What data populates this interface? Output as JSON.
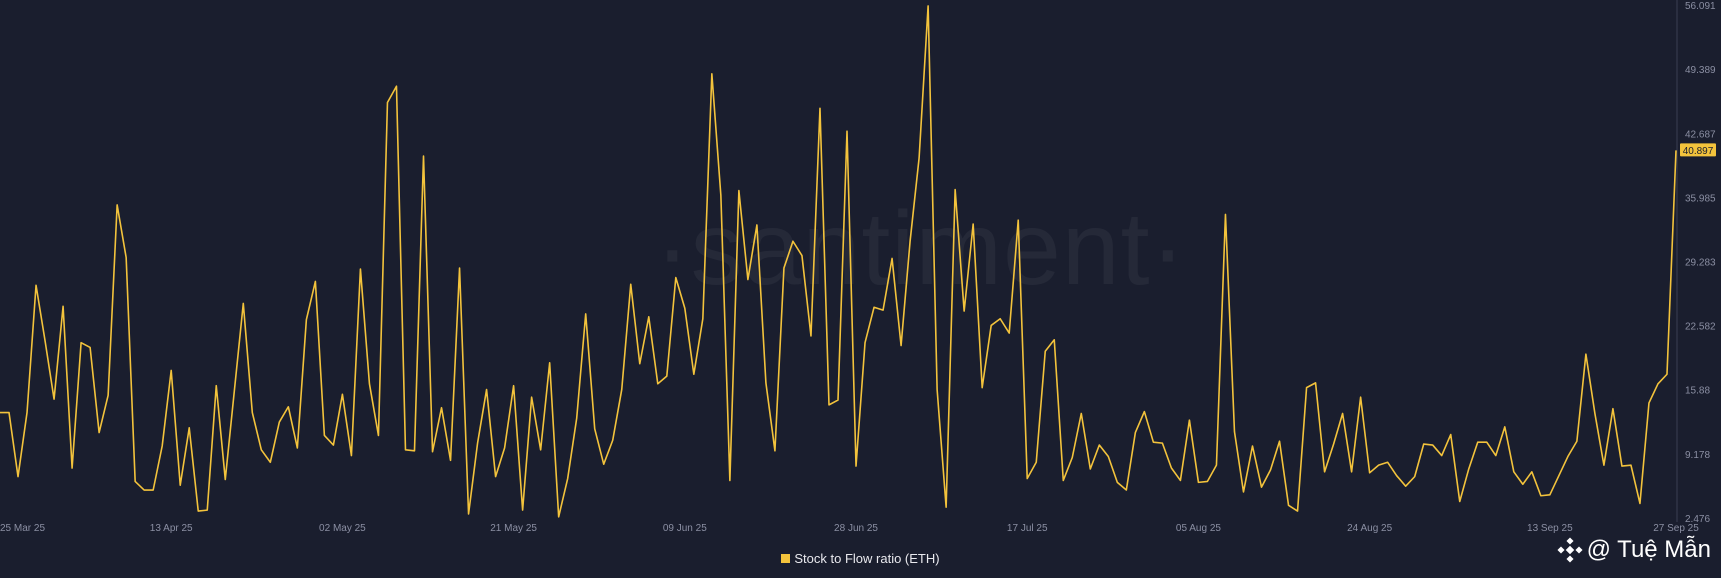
{
  "watermark": "·santiment·",
  "legend": {
    "label": "Stock to Flow ratio (ETH)"
  },
  "attribution": {
    "text": "@ Tuệ Mẫn",
    "icon": "binance-diamond-icon"
  },
  "colors": {
    "background": "#1a1e2e",
    "line": "#f3c33c",
    "tick_text": "#8b8fa3",
    "badge_text": "#1a1e2e"
  },
  "chart_data": {
    "type": "line",
    "title": "",
    "xlabel": "",
    "ylabel": "",
    "ylim": [
      2.476,
      56.091
    ],
    "y_ticks": [
      "56.091",
      "49.389",
      "42.687",
      "35.985",
      "29.283",
      "22.582",
      "15.88",
      "9.178",
      "2.476"
    ],
    "x_ticks": [
      "25 Mar 25",
      "13 Apr 25",
      "02 May 25",
      "21 May 25",
      "09 Jun 25",
      "28 Jun 25",
      "17 Jul 25",
      "05 Aug 25",
      "24 Aug 25",
      "13 Sep 25",
      "27 Sep 25"
    ],
    "x_range": [
      "2025-03-25",
      "2025-09-27"
    ],
    "last_value_label": "40.897",
    "series": [
      {
        "name": "Stock to Flow ratio (ETH)",
        "values": [
          13.5,
          13.5,
          6.8,
          13.5,
          26.8,
          21.0,
          14.9,
          24.6,
          7.7,
          20.8,
          20.3,
          11.4,
          15.3,
          35.2,
          29.7,
          6.3,
          5.4,
          5.4,
          10.0,
          17.9,
          5.9,
          11.9,
          3.2,
          3.3,
          16.3,
          6.5,
          15.7,
          24.9,
          13.5,
          9.6,
          8.3,
          12.5,
          14.1,
          9.8,
          23.2,
          27.2,
          11.1,
          10.1,
          15.4,
          9.0,
          28.5,
          16.5,
          11.1,
          45.9,
          47.6,
          9.6,
          9.5,
          40.3,
          9.4,
          14.0,
          8.5,
          28.6,
          2.9,
          10.3,
          15.9,
          6.8,
          9.8,
          16.3,
          3.3,
          15.1,
          9.6,
          18.7,
          2.6,
          6.6,
          12.9,
          23.8,
          11.8,
          8.1,
          10.6,
          15.9,
          26.9,
          18.6,
          23.5,
          16.5,
          17.3,
          27.6,
          24.4,
          17.5,
          23.3,
          48.9,
          36.2,
          6.4,
          36.7,
          27.4,
          33.1,
          16.6,
          9.5,
          28.6,
          31.4,
          29.9,
          21.5,
          45.3,
          14.3,
          14.8,
          42.9,
          7.9,
          20.8,
          24.5,
          24.2,
          29.6,
          20.5,
          31.4,
          40.1,
          56.0,
          15.9,
          3.6,
          36.8,
          24.1,
          33.2,
          16.1,
          22.6,
          23.3,
          21.8,
          33.6,
          6.6,
          8.3,
          19.9,
          21.1,
          6.4,
          8.8,
          13.4,
          7.6,
          10.1,
          8.9,
          6.2,
          5.4,
          11.4,
          13.6,
          10.4,
          10.3,
          7.7,
          6.4,
          12.7,
          6.2,
          6.3,
          8.0,
          34.2,
          11.5,
          5.2,
          10.0,
          5.7,
          7.5,
          10.5,
          3.8,
          3.2,
          16.1,
          16.6,
          7.3,
          10.2,
          13.4,
          7.3,
          15.1,
          7.2,
          8.0,
          8.3,
          6.9,
          5.8,
          6.8,
          10.2,
          10.1,
          9.0,
          11.2,
          4.2,
          7.6,
          10.4,
          10.4,
          9.0,
          12.0,
          7.3,
          6.0,
          7.3,
          4.8,
          4.9,
          6.9,
          8.9,
          10.5,
          19.6,
          13.4,
          8.0,
          13.9,
          7.9,
          8.0,
          4.0,
          14.5,
          16.5,
          17.5,
          40.897
        ]
      }
    ]
  }
}
